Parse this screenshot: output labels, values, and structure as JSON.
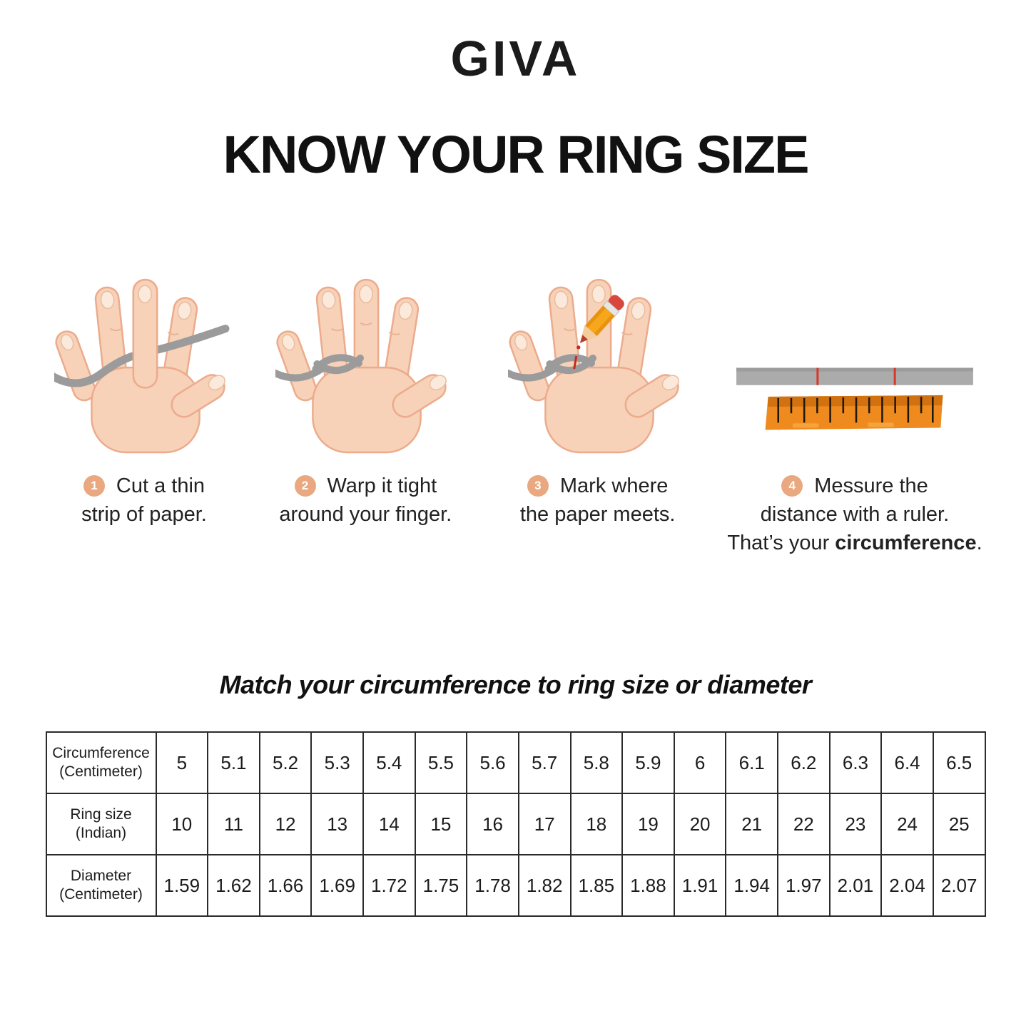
{
  "brand": {
    "logo": "GIVA"
  },
  "header": {
    "title": "KNOW YOUR RING SIZE"
  },
  "steps": [
    {
      "number": "1",
      "line1": "Cut a thin",
      "line2": "strip of paper.",
      "illustration": "hand-with-paper-strip"
    },
    {
      "number": "2",
      "line1": "Warp it tight",
      "line2": "around your finger.",
      "illustration": "hand-strip-wrapped-around-finger"
    },
    {
      "number": "3",
      "line1": "Mark where",
      "line2": "the paper meets.",
      "illustration": "hand-strip-pencil-marking"
    },
    {
      "number": "4",
      "line1": "Messure the",
      "line2": "distance with a ruler.",
      "line3_prefix": "That’s your ",
      "line3_bold": "circumference",
      "line3_suffix": ".",
      "illustration": "paper-strip-and-ruler"
    }
  ],
  "table_section": {
    "subtitle": "Match your circumference to ring size or diameter"
  },
  "chart_data": {
    "type": "table",
    "rows": [
      {
        "label_line1": "Circumference",
        "label_line2": "(Centimeter)",
        "values": [
          "5",
          "5.1",
          "5.2",
          "5.3",
          "5.4",
          "5.5",
          "5.6",
          "5.7",
          "5.8",
          "5.9",
          "6",
          "6.1",
          "6.2",
          "6.3",
          "6.4",
          "6.5"
        ]
      },
      {
        "label_line1": "Ring size",
        "label_line2": "(Indian)",
        "values": [
          "10",
          "11",
          "12",
          "13",
          "14",
          "15",
          "16",
          "17",
          "18",
          "19",
          "20",
          "21",
          "22",
          "23",
          "24",
          "25"
        ]
      },
      {
        "label_line1": "Diameter",
        "label_line2": "(Centimeter)",
        "values": [
          "1.59",
          "1.62",
          "1.66",
          "1.69",
          "1.72",
          "1.75",
          "1.78",
          "1.82",
          "1.85",
          "1.88",
          "1.91",
          "1.94",
          "1.97",
          "2.01",
          "2.04",
          "2.07"
        ]
      }
    ]
  },
  "colors": {
    "badge_accent": "#E9A87F",
    "skin": "#F7D2B8",
    "skin_outline": "#ECAB8C",
    "paper_strip_gray": "#9B9B9B",
    "ruler_orange": "#EE8A1E",
    "mark_red": "#D8382C",
    "text": "#1c1c1c"
  }
}
